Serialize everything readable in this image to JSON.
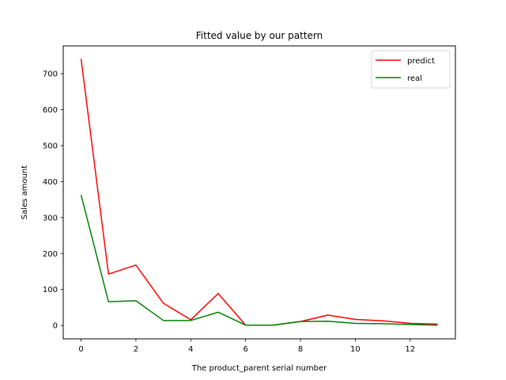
{
  "chart_data": {
    "type": "line",
    "title": "Fitted value by our pattern",
    "xlabel": "The product_parent serial number",
    "ylabel": "Sales amount",
    "x": [
      0,
      1,
      2,
      3,
      4,
      5,
      6,
      7,
      8,
      9,
      10,
      11,
      12,
      13
    ],
    "xlim": [
      -0.65,
      13.65
    ],
    "ylim": [
      -37,
      777
    ],
    "xticks": [
      0,
      2,
      4,
      6,
      8,
      10,
      12
    ],
    "yticks": [
      0,
      100,
      200,
      300,
      400,
      500,
      600,
      700
    ],
    "grid": false,
    "legend_position": "top-right",
    "series": [
      {
        "name": "predict",
        "color": "#ff0000",
        "values": [
          741,
          143,
          168,
          62,
          16,
          89,
          1,
          1,
          11,
          29,
          17,
          13,
          6,
          4
        ]
      },
      {
        "name": "real",
        "color": "#008000",
        "values": [
          363,
          66,
          69,
          14,
          14,
          37,
          1,
          1,
          11,
          12,
          6,
          5,
          3,
          1
        ]
      }
    ]
  }
}
